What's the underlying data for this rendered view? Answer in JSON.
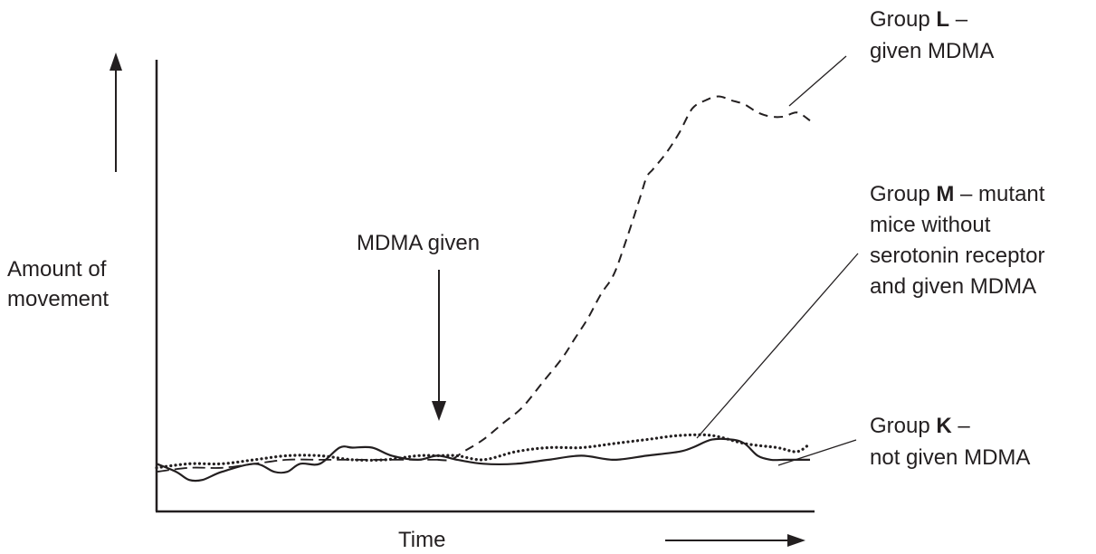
{
  "chart_data": {
    "type": "line",
    "title": "",
    "xlabel": "Time",
    "ylabel": [
      "Amount of",
      "movement"
    ],
    "xlim": [
      0,
      100
    ],
    "ylim": [
      0,
      100
    ],
    "grid": false,
    "annotation": {
      "text": "MDMA given",
      "x": 43
    },
    "series": [
      {
        "key": "L",
        "style": "dashed",
        "label": {
          "prefix": "Group ",
          "letter": "L",
          "suffix": " –",
          "lines": [
            "given MDMA"
          ]
        },
        "x": [
          43,
          45,
          47,
          50,
          53,
          56,
          59,
          62,
          64,
          66,
          68,
          70,
          72,
          74,
          75,
          76,
          78,
          80,
          82,
          84,
          86,
          88,
          90,
          92,
          94,
          96,
          98,
          100
        ],
        "y": [
          9,
          9,
          11,
          14,
          18,
          22,
          28,
          34,
          39,
          44,
          50,
          55,
          64,
          74,
          79,
          81,
          85,
          90,
          96,
          98,
          99,
          98,
          97,
          95,
          94,
          94,
          95,
          93
        ]
      },
      {
        "key": "M",
        "style": "dotted",
        "label": {
          "prefix": "Group ",
          "letter": "M",
          "suffix": " – mutant",
          "lines": [
            "mice without",
            "serotonin receptor",
            "and given MDMA"
          ]
        },
        "x": [
          0,
          5,
          10,
          15,
          20,
          25,
          30,
          35,
          40,
          43,
          46,
          50,
          55,
          60,
          65,
          70,
          75,
          80,
          85,
          90,
          95,
          98,
          100
        ],
        "y": [
          7,
          8,
          8,
          9,
          10,
          10,
          9,
          9,
          10,
          10,
          10,
          9,
          11,
          12,
          12,
          13,
          14,
          15,
          15,
          13,
          12,
          11,
          13
        ]
      },
      {
        "key": "K",
        "style": "solid",
        "label": {
          "prefix": "Group ",
          "letter": "K",
          "suffix": " –",
          "lines": [
            "not given MDMA"
          ]
        },
        "x": [
          0,
          3,
          5,
          7,
          10,
          15,
          18,
          20,
          22,
          25,
          28,
          30,
          33,
          36,
          40,
          43,
          46,
          50,
          55,
          60,
          65,
          70,
          75,
          80,
          82,
          85,
          88,
          90,
          92,
          94,
          96,
          98,
          100
        ],
        "y": [
          8,
          6,
          4,
          4,
          6,
          8,
          6,
          6,
          8,
          8,
          12,
          12,
          12,
          10,
          9,
          10,
          9,
          8,
          8,
          9,
          10,
          9,
          10,
          11,
          12,
          14,
          14,
          13,
          10,
          9,
          9,
          9,
          9
        ]
      },
      {
        "key": "pre",
        "style": "long-dash",
        "x": [
          0,
          5,
          10,
          15,
          20,
          25,
          30,
          35,
          40,
          43
        ],
        "y": [
          6,
          7,
          7,
          8,
          9,
          9,
          9,
          9,
          9,
          9
        ]
      }
    ]
  }
}
